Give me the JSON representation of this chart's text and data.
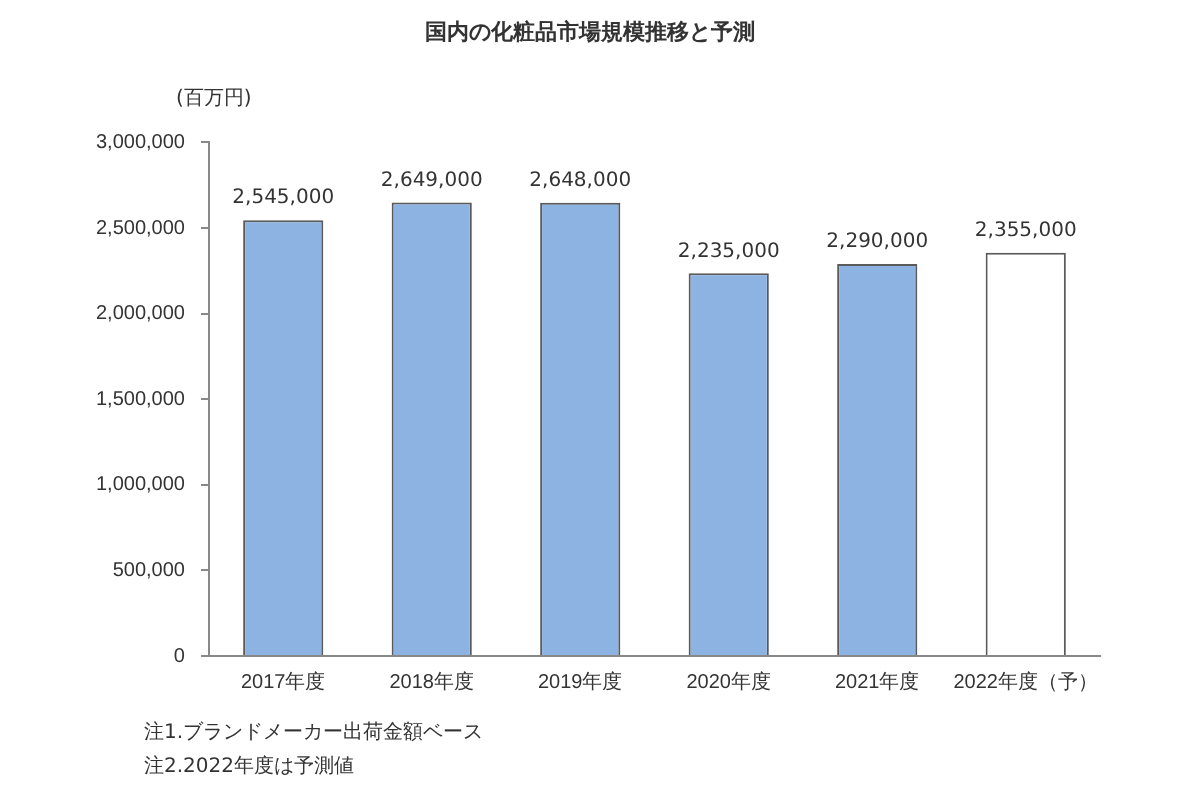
{
  "chart_data": {
    "type": "bar",
    "title": "国内の化粧品市場規模推移と予測",
    "ylabel": "(百万円)",
    "categories": [
      "2017年度",
      "2018年度",
      "2019年度",
      "2020年度",
      "2021年度",
      "2022年度（予）"
    ],
    "values": [
      2545000,
      2649000,
      2648000,
      2235000,
      2290000,
      2355000
    ],
    "colors": [
      "#8db3e2",
      "#8db3e2",
      "#8db3e2",
      "#8db3e2",
      "#8db3e2",
      "#ffffff"
    ],
    "value_labels": [
      "2,545,000",
      "2,649,000",
      "2,648,000",
      "2,235,000",
      "2,290,000",
      "2,355,000"
    ],
    "ylim": [
      0,
      3000000
    ],
    "yticks": [
      {
        "value": 0,
        "label": "0"
      },
      {
        "value": 500000,
        "label": "500,000"
      },
      {
        "value": 1000000,
        "label": "1,000,000"
      },
      {
        "value": 1500000,
        "label": "1,500,000"
      },
      {
        "value": 2000000,
        "label": "2,000,000"
      },
      {
        "value": 2500000,
        "label": "2,500,000"
      },
      {
        "value": 3000000,
        "label": "3,000,000"
      }
    ],
    "grid": false,
    "legend": false,
    "annotations": [
      "注1.ブランドメーカー出荷金額ベース",
      "注2.2022年度は予測値"
    ]
  }
}
